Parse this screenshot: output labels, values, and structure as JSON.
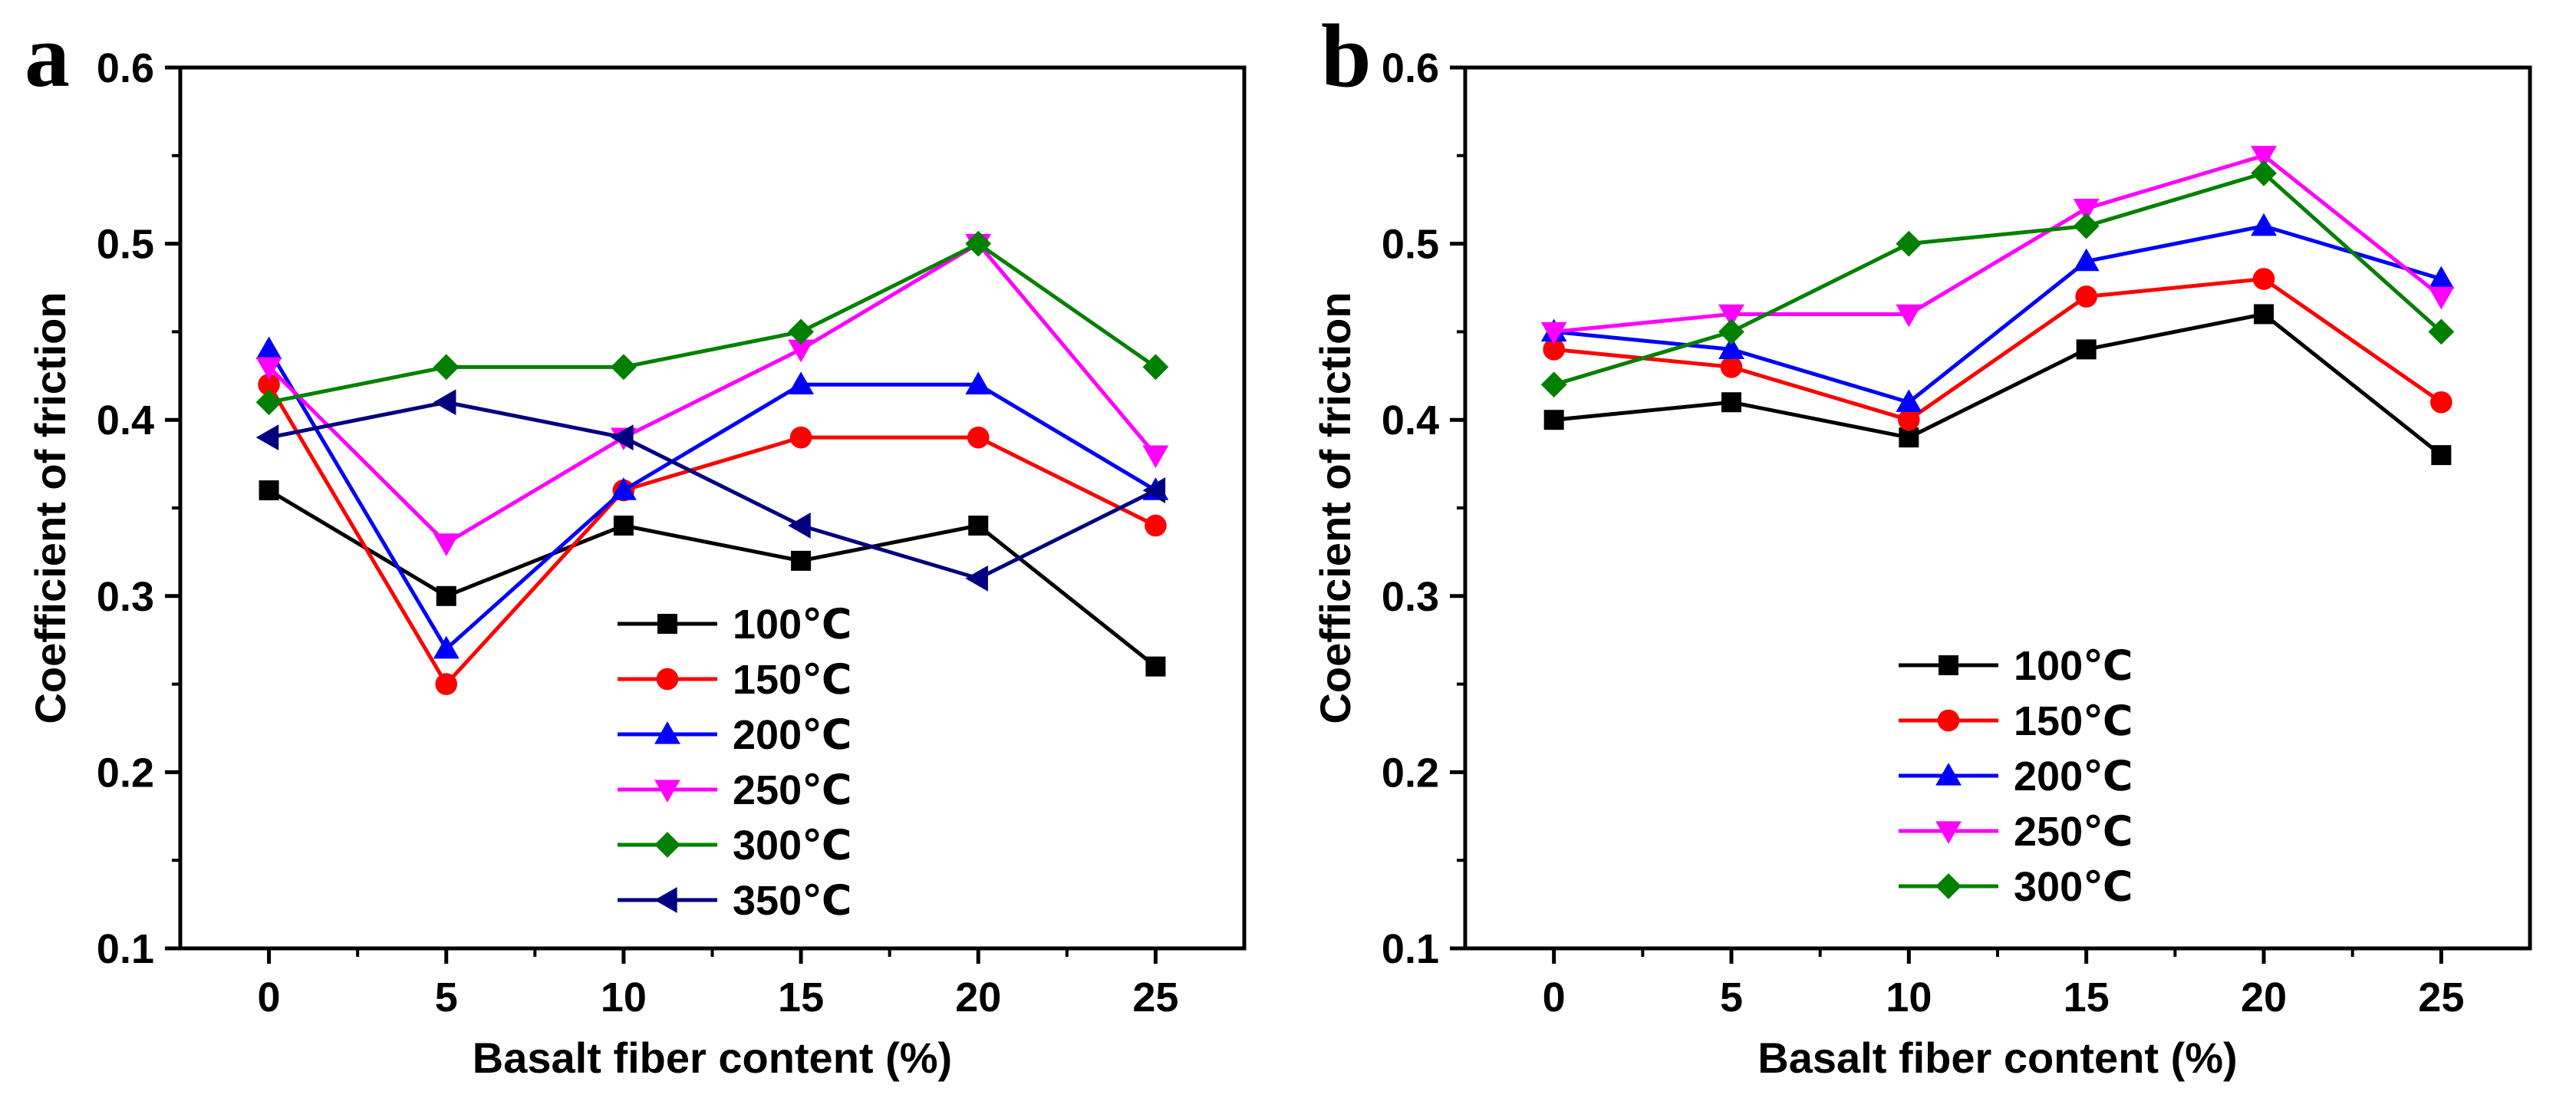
{
  "chart_data": [
    {
      "type": "line",
      "panel_label": "a",
      "xlabel": "Basalt fiber content (%)",
      "ylabel": "Coefficient of friction",
      "x": [
        0,
        5,
        10,
        15,
        20,
        25
      ],
      "xlim": [
        -2.5,
        27.5
      ],
      "ylim": [
        0.1,
        0.6
      ],
      "xticks": [
        "0",
        "5",
        "10",
        "15",
        "20",
        "25"
      ],
      "yticks": [
        "0.1",
        "0.2",
        "0.3",
        "0.4",
        "0.5",
        "0.6"
      ],
      "legend_position": "lower-center",
      "series": [
        {
          "name": "100℃",
          "color": "#000000",
          "marker": "square",
          "values": [
            0.36,
            0.3,
            0.34,
            0.32,
            0.34,
            0.26
          ]
        },
        {
          "name": "150℃",
          "color": "#ff0000",
          "marker": "circle",
          "values": [
            0.42,
            0.25,
            0.36,
            0.39,
            0.39,
            0.34
          ]
        },
        {
          "name": "200℃",
          "color": "#0000ff",
          "marker": "triangle-up",
          "values": [
            0.44,
            0.27,
            0.36,
            0.42,
            0.42,
            0.36
          ]
        },
        {
          "name": "250℃",
          "color": "#ff00ff",
          "marker": "triangle-down",
          "values": [
            0.43,
            0.33,
            0.39,
            0.44,
            0.5,
            0.38
          ]
        },
        {
          "name": "300℃",
          "color": "#008000",
          "marker": "diamond",
          "values": [
            0.41,
            0.43,
            0.43,
            0.45,
            0.5,
            0.43
          ]
        },
        {
          "name": "350℃",
          "color": "#000080",
          "marker": "triangle-left",
          "values": [
            0.39,
            0.41,
            0.39,
            0.34,
            0.31,
            0.36
          ]
        }
      ]
    },
    {
      "type": "line",
      "panel_label": "b",
      "xlabel": "Basalt fiber content (%)",
      "ylabel": "Coefficient of friction",
      "x": [
        0,
        5,
        10,
        15,
        20,
        25
      ],
      "xlim": [
        -2.5,
        27.5
      ],
      "ylim": [
        0.1,
        0.6
      ],
      "xticks": [
        "0",
        "5",
        "10",
        "15",
        "20",
        "25"
      ],
      "yticks": [
        "0.1",
        "0.2",
        "0.3",
        "0.4",
        "0.5",
        "0.6"
      ],
      "legend_position": "lower-center",
      "series": [
        {
          "name": "100℃",
          "color": "#000000",
          "marker": "square",
          "values": [
            0.4,
            0.41,
            0.39,
            0.44,
            0.46,
            0.38
          ]
        },
        {
          "name": "150℃",
          "color": "#ff0000",
          "marker": "circle",
          "values": [
            0.44,
            0.43,
            0.4,
            0.47,
            0.48,
            0.41
          ]
        },
        {
          "name": "200℃",
          "color": "#0000ff",
          "marker": "triangle-up",
          "values": [
            0.45,
            0.44,
            0.41,
            0.49,
            0.51,
            0.48
          ]
        },
        {
          "name": "250℃",
          "color": "#ff00ff",
          "marker": "triangle-down",
          "values": [
            0.45,
            0.46,
            0.46,
            0.52,
            0.55,
            0.47
          ]
        },
        {
          "name": "300℃",
          "color": "#008000",
          "marker": "diamond",
          "values": [
            0.42,
            0.45,
            0.5,
            0.51,
            0.54,
            0.45
          ]
        }
      ]
    }
  ]
}
